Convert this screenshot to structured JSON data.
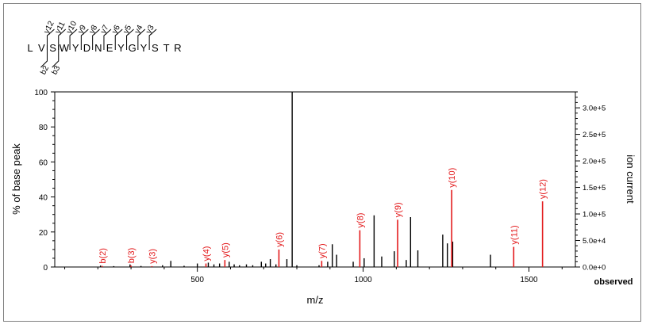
{
  "peptide": {
    "residues": [
      "L",
      "V",
      "S",
      "W",
      "Y",
      "D",
      "N",
      "E",
      "Y",
      "G",
      "Y",
      "S",
      "T",
      "R"
    ],
    "y_ions": [
      "y12",
      "y11",
      "y10",
      "y9",
      "y8",
      "y7",
      "y6",
      "y5",
      "y4",
      "y3"
    ],
    "b_ions": [
      "b2",
      "b3"
    ]
  },
  "chart_data": {
    "type": "bar",
    "xlabel": "m/z",
    "ylabel": "% of base peak",
    "y2label": "ion current",
    "corner_label": "observed",
    "xlim": [
      70,
      1640
    ],
    "ylim": [
      0,
      100
    ],
    "y2lim": [
      0,
      330000
    ],
    "xticks": [
      500,
      1000,
      1500
    ],
    "xtick_labels": [
      "500",
      "1000",
      "1500"
    ],
    "yticks": [
      0,
      20,
      40,
      60,
      80,
      100
    ],
    "ytick_labels": [
      "0",
      "20",
      "40",
      "60",
      "80",
      "100"
    ],
    "y2ticks": [
      0,
      50000,
      100000,
      150000,
      200000,
      250000,
      300000
    ],
    "y2tick_labels": [
      "0.0e+0",
      "5.0e+4",
      "1.0e+5",
      "1.5e+5",
      "2.0e+5",
      "2.5e+5",
      "3.0e+5"
    ],
    "grid": false,
    "colors": {
      "matched": "#e31a1c",
      "unmatched": "#000000"
    },
    "unmatched_peaks": [
      {
        "mz": 208,
        "intensity": 0.8
      },
      {
        "mz": 248,
        "intensity": 0.5
      },
      {
        "mz": 297,
        "intensity": 1.5
      },
      {
        "mz": 330,
        "intensity": 0.6
      },
      {
        "mz": 395,
        "intensity": 1.0
      },
      {
        "mz": 420,
        "intensity": 3.5
      },
      {
        "mz": 460,
        "intensity": 0.7
      },
      {
        "mz": 500,
        "intensity": 2.0
      },
      {
        "mz": 533,
        "intensity": 2.5
      },
      {
        "mz": 550,
        "intensity": 1.5
      },
      {
        "mz": 567,
        "intensity": 2.0
      },
      {
        "mz": 596,
        "intensity": 3.0
      },
      {
        "mz": 611,
        "intensity": 1.5
      },
      {
        "mz": 627,
        "intensity": 1.0
      },
      {
        "mz": 648,
        "intensity": 1.5
      },
      {
        "mz": 667,
        "intensity": 1.0
      },
      {
        "mz": 693,
        "intensity": 3.0
      },
      {
        "mz": 706,
        "intensity": 2.0
      },
      {
        "mz": 720,
        "intensity": 4.5
      },
      {
        "mz": 737,
        "intensity": 1.5
      },
      {
        "mz": 770,
        "intensity": 4.5
      },
      {
        "mz": 786,
        "intensity": 100
      },
      {
        "mz": 800,
        "intensity": 1.0
      },
      {
        "mz": 867,
        "intensity": 1.0
      },
      {
        "mz": 893,
        "intensity": 3.0
      },
      {
        "mz": 907,
        "intensity": 13.0
      },
      {
        "mz": 920,
        "intensity": 7.0
      },
      {
        "mz": 970,
        "intensity": 3.0
      },
      {
        "mz": 1003,
        "intensity": 5.0
      },
      {
        "mz": 1033,
        "intensity": 29.5
      },
      {
        "mz": 1056,
        "intensity": 6.0
      },
      {
        "mz": 1094,
        "intensity": 9.0
      },
      {
        "mz": 1130,
        "intensity": 4.0
      },
      {
        "mz": 1143,
        "intensity": 28.5
      },
      {
        "mz": 1165,
        "intensity": 9.5
      },
      {
        "mz": 1240,
        "intensity": 18.5
      },
      {
        "mz": 1254,
        "intensity": 13.5
      },
      {
        "mz": 1270,
        "intensity": 14.5
      },
      {
        "mz": 1384,
        "intensity": 7.0
      }
    ],
    "matched_peaks": [
      {
        "label": "b(2)",
        "mz": 213,
        "intensity": 0.6
      },
      {
        "label": "b(3)",
        "mz": 300,
        "intensity": 0.8
      },
      {
        "label": "y(3)",
        "mz": 363,
        "intensity": 0.5
      },
      {
        "label": "y(4)",
        "mz": 526,
        "intensity": 2.0
      },
      {
        "label": "y(5)",
        "mz": 583,
        "intensity": 4.0
      },
      {
        "label": "y(6)",
        "mz": 746,
        "intensity": 10.0
      },
      {
        "label": "y(7)",
        "mz": 875,
        "intensity": 3.5
      },
      {
        "label": "y(8)",
        "mz": 990,
        "intensity": 21.0
      },
      {
        "label": "y(9)",
        "mz": 1104,
        "intensity": 27.0
      },
      {
        "label": "y(10)",
        "mz": 1267,
        "intensity": 44.0
      },
      {
        "label": "y(11)",
        "mz": 1454,
        "intensity": 11.5
      },
      {
        "label": "y(12)",
        "mz": 1541,
        "intensity": 37.5
      }
    ]
  }
}
